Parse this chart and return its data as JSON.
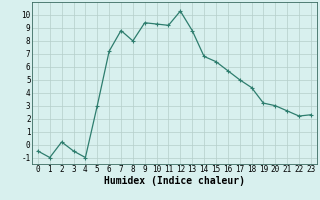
{
  "x": [
    0,
    1,
    2,
    3,
    4,
    5,
    6,
    7,
    8,
    9,
    10,
    11,
    12,
    13,
    14,
    15,
    16,
    17,
    18,
    19,
    20,
    21,
    22,
    23
  ],
  "y": [
    -0.5,
    -1.0,
    0.2,
    -0.5,
    -1.0,
    3.0,
    7.2,
    8.8,
    8.0,
    9.4,
    9.3,
    9.2,
    10.3,
    8.8,
    6.8,
    6.4,
    5.7,
    5.0,
    4.4,
    3.2,
    3.0,
    2.6,
    2.2,
    2.3
  ],
  "xlabel": "Humidex (Indice chaleur)",
  "xlim": [
    -0.5,
    23.5
  ],
  "ylim": [
    -1.5,
    11.0
  ],
  "yticks": [
    -1,
    0,
    1,
    2,
    3,
    4,
    5,
    6,
    7,
    8,
    9,
    10
  ],
  "xticks": [
    0,
    1,
    2,
    3,
    4,
    5,
    6,
    7,
    8,
    9,
    10,
    11,
    12,
    13,
    14,
    15,
    16,
    17,
    18,
    19,
    20,
    21,
    22,
    23
  ],
  "line_color": "#2e7d6e",
  "marker": "+",
  "bg_color": "#d8f0ee",
  "grid_color": "#b5ceca",
  "xlabel_fontsize": 7,
  "tick_fontsize": 5.5
}
